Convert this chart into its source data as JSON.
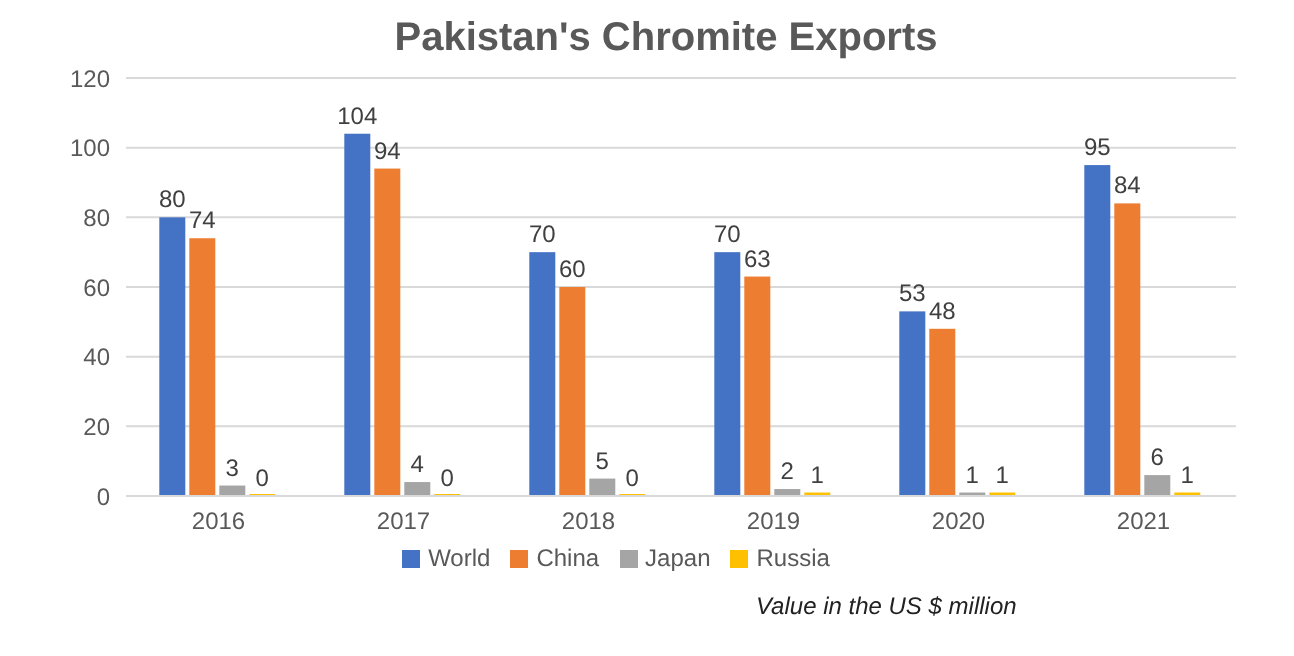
{
  "chart_data": {
    "type": "bar",
    "title": "Pakistan's Chromite Exports",
    "categories": [
      "2016",
      "2017",
      "2018",
      "2019",
      "2020",
      "2021"
    ],
    "series": [
      {
        "name": "World",
        "color": "#4472c4",
        "values": [
          80,
          104,
          70,
          70,
          53,
          95
        ]
      },
      {
        "name": "China",
        "color": "#ed7d31",
        "values": [
          74,
          94,
          60,
          63,
          48,
          84
        ]
      },
      {
        "name": "Japan",
        "color": "#a5a5a5",
        "values": [
          3,
          4,
          5,
          2,
          1,
          6
        ]
      },
      {
        "name": "Russia",
        "color": "#ffc000",
        "values": [
          0,
          0,
          0,
          1,
          1,
          1
        ]
      }
    ],
    "ylim": [
      0,
      120
    ],
    "yticks": [
      0,
      20,
      40,
      60,
      80,
      100,
      120
    ],
    "grid": "y",
    "legend": "bottom",
    "data_labels": true,
    "annotations": [
      "Value in the US $ million"
    ]
  }
}
